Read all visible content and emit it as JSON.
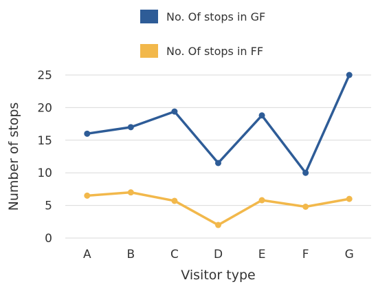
{
  "chart_data": {
    "type": "line",
    "title": "",
    "xlabel": "Visitor type",
    "ylabel": "Number of stops",
    "categories": [
      "A",
      "B",
      "C",
      "D",
      "E",
      "F",
      "G"
    ],
    "ylim": [
      0,
      25
    ],
    "yticks": [
      0,
      5,
      10,
      15,
      20,
      25
    ],
    "grid": true,
    "legend_position": "top",
    "series": [
      {
        "name": "No. Of stops in GF",
        "color": "#2e5c97",
        "values": [
          16,
          17,
          19.4,
          11.5,
          18.8,
          10,
          25
        ]
      },
      {
        "name": "No. Of stops in FF",
        "color": "#f2b84b",
        "values": [
          6.5,
          7,
          5.7,
          2,
          5.8,
          4.8,
          6
        ]
      }
    ]
  }
}
